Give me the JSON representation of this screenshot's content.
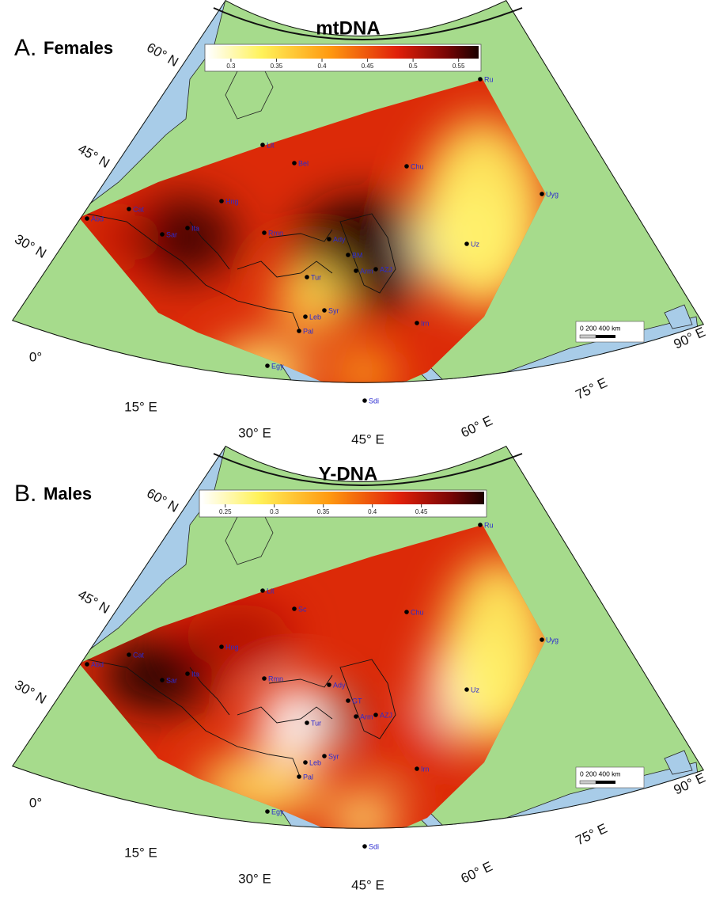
{
  "panels": [
    {
      "label": "A.",
      "subtitle": "Females",
      "title": "mtDNA",
      "colorbar": {
        "range": [
          0.274,
          0.572
        ],
        "ticks": [
          0.3,
          0.35,
          0.4,
          0.45,
          0.5,
          0.55
        ]
      },
      "places": [
        "Ru",
        "Lit",
        "Bel",
        "Chu",
        "Uyg",
        "Hng",
        "Cat",
        "Abd",
        "Sar",
        "Ita",
        "Rmn",
        "Ady",
        "Uz",
        "BM",
        "Tur",
        "Arm",
        "AZJ",
        "Syr",
        "Leb",
        "Pal",
        "Irn",
        "Egy",
        "Sdi"
      ],
      "graticule": [
        "60° N",
        "45° N",
        "30° N",
        "0°",
        "15° E",
        "30° E",
        "45° E",
        "60° E",
        "75° E",
        "90° E"
      ],
      "scale_bar": "0  200  400 km"
    },
    {
      "label": "B.",
      "subtitle": "Males",
      "title": "Y-DNA",
      "colorbar": {
        "range": [
          0.226,
          0.514
        ],
        "ticks": [
          0.25,
          0.3,
          0.35,
          0.4,
          0.45
        ]
      },
      "places": [
        "Ru",
        "Lit",
        "Sc",
        "Chu",
        "Uyg",
        "Hng",
        "Cat",
        "Abd",
        "Sar",
        "Ita",
        "Rmn",
        "Ady",
        "Uz",
        "GT",
        "Tur",
        "Arm",
        "AZJ",
        "Syr",
        "Leb",
        "Pal",
        "Irn",
        "Egy",
        "Sdi"
      ],
      "graticule": [
        "60° N",
        "45° N",
        "30° N",
        "0°",
        "15° E",
        "30° E",
        "45° E",
        "60° E",
        "75° E",
        "90° E"
      ],
      "scale_bar": "0  200  400 km"
    }
  ]
}
